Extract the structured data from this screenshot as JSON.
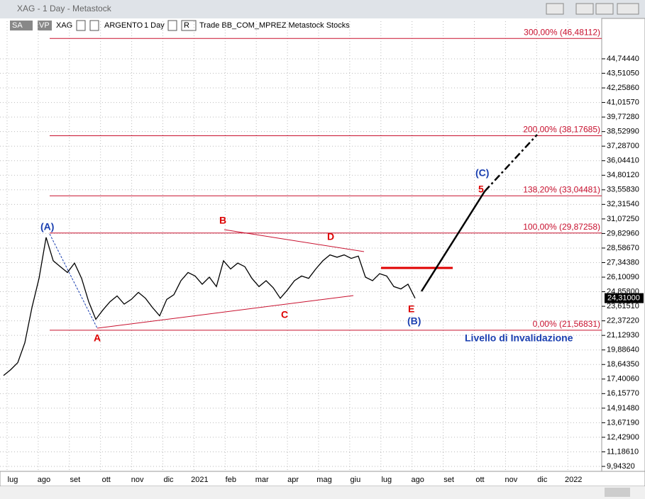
{
  "window": {
    "title": "XAG - 1 Day - Metastock"
  },
  "toolbar": {
    "sa": "SA",
    "vp": "VP",
    "symbol": "XAG",
    "name": "ARGENTO",
    "period": "1 Day",
    "r": "R",
    "instrument_text": "Trade BB_COM_MPREZ Metastock Stocks"
  },
  "chart_data": {
    "type": "line",
    "color": "#000000",
    "x_labels": [
      "lug",
      "ago",
      "set",
      "ott",
      "nov",
      "dic",
      "2021",
      "feb",
      "mar",
      "apr",
      "mag",
      "giu",
      "lug",
      "ago",
      "set",
      "ott",
      "nov",
      "dic",
      "2022"
    ],
    "values": [
      17.7,
      18.2,
      18.8,
      20.5,
      23.5,
      26,
      29.5,
      27.5,
      27,
      26.5,
      27.3,
      26,
      24,
      22.5,
      23.3,
      24,
      24.5,
      23.8,
      24.2,
      24.8,
      24.3,
      23.5,
      22.8,
      24.2,
      24.6,
      25.8,
      26.5,
      26.2,
      25.5,
      26.1,
      25.3,
      27.5,
      26.8,
      27.3,
      27,
      26,
      25.3,
      25.8,
      25.2,
      24.3,
      25,
      25.8,
      26.2,
      26,
      26.8,
      27.5,
      28,
      27.8,
      28,
      27.7,
      27.9,
      26.1,
      25.8,
      26.4,
      26.2,
      25.3,
      25.1,
      25.5,
      24.3
    ],
    "ylim": [
      9.52,
      47.95
    ],
    "yticks": [
      {
        "value": 44.7444,
        "label": "44,74440"
      },
      {
        "value": 43.5105,
        "label": "43,51050"
      },
      {
        "value": 42.2586,
        "label": "42,25860"
      },
      {
        "value": 41.0157,
        "label": "41,01570"
      },
      {
        "value": 39.7728,
        "label": "39,77280"
      },
      {
        "value": 38.5299,
        "label": "38,52990"
      },
      {
        "value": 37.287,
        "label": "37,28700"
      },
      {
        "value": 36.0441,
        "label": "36,04410"
      },
      {
        "value": 34.8012,
        "label": "34,80120"
      },
      {
        "value": 33.5583,
        "label": "33,55830"
      },
      {
        "value": 32.3154,
        "label": "32,31540"
      },
      {
        "value": 31.0725,
        "label": "31,07250"
      },
      {
        "value": 29.8296,
        "label": "29,82960"
      },
      {
        "value": 28.5867,
        "label": "28,58670"
      },
      {
        "value": 27.3438,
        "label": "27,34380"
      },
      {
        "value": 26.1009,
        "label": "26,10090"
      },
      {
        "value": 24.858,
        "label": "24,85800"
      },
      {
        "value": 23.6151,
        "label": "23,61510"
      },
      {
        "value": 22.3722,
        "label": "22,37220"
      },
      {
        "value": 21.1293,
        "label": "21,12930"
      },
      {
        "value": 19.8864,
        "label": "19,88640"
      },
      {
        "value": 18.6435,
        "label": "18,64350"
      },
      {
        "value": 17.4006,
        "label": "17,40060"
      },
      {
        "value": 16.1577,
        "label": "16,15770"
      },
      {
        "value": 14.9148,
        "label": "14,91480"
      },
      {
        "value": 13.6719,
        "label": "13,67190"
      },
      {
        "value": 12.429,
        "label": "12,42900"
      },
      {
        "value": 11.1861,
        "label": "11,18610"
      },
      {
        "value": 9.9432,
        "label": "9,94320"
      }
    ],
    "last_price": {
      "value": 24.31,
      "label": "24,31000"
    },
    "fib_levels": [
      {
        "value": 46.48112,
        "label": "300,00% (46,48112)"
      },
      {
        "value": 38.17685,
        "label": "200,00% (38,17685)"
      },
      {
        "value": 33.04481,
        "label": "138,20% (33,04481)"
      },
      {
        "value": 29.87258,
        "label": "100,00% (29,87258)"
      },
      {
        "value": 21.56831,
        "label": "0,00% (21,56831)"
      }
    ],
    "grid": true,
    "annotations": {
      "wave_A_big": "(A)",
      "wave_A": "A",
      "wave_B": "B",
      "wave_C": "C",
      "wave_D": "D",
      "wave_E": "E",
      "wave_B_big": "(B)",
      "wave_C_big": "(C)",
      "wave_5": "5",
      "invalidation": "Livello di Invalidazione"
    }
  }
}
